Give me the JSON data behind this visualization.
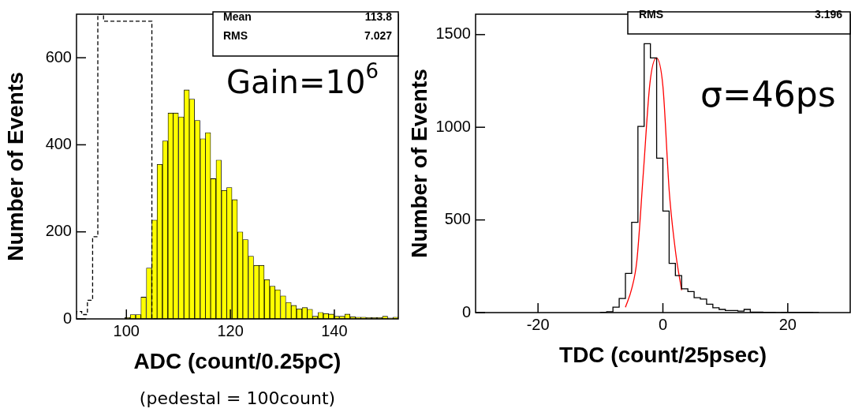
{
  "chart_data": [
    {
      "type": "histogram",
      "xlabel": "ADC (count/0.25pC)",
      "ylabel": "Number of Events",
      "xlim": [
        90.4,
        152.3
      ],
      "ylim": [
        0,
        700
      ],
      "xticks": [
        100,
        120,
        140
      ],
      "yticks": [
        0,
        200,
        400,
        600
      ],
      "grid": false,
      "legend": false,
      "annotations": [
        "Mean",
        "113.8",
        "RMS",
        "7.027",
        "Gain=10$^{6}$",
        "(pedestal = 100count)"
      ],
      "bins": [
        90.4,
        91.4,
        92.5,
        93.5,
        94.5,
        95.6,
        96.6,
        97.6,
        98.7,
        99.7,
        100.7,
        101.8,
        102.8,
        103.8,
        104.9,
        105.9,
        106.9,
        108.0,
        109.0,
        110.0,
        111.1,
        112.1,
        113.1,
        114.2,
        115.2,
        116.2,
        117.2,
        118.3,
        119.3,
        120.3,
        121.4,
        122.4,
        123.4,
        124.5,
        125.5,
        126.5,
        127.6,
        128.6,
        129.6,
        130.7,
        131.7,
        132.7,
        133.8,
        134.8,
        135.8,
        136.8,
        137.9,
        138.9,
        139.9,
        141.0,
        142.0,
        143.0,
        144.1,
        145.1,
        146.1,
        147.2,
        148.2,
        149.2,
        150.3,
        151.3,
        152.3
      ],
      "series": [
        {
          "type": "step",
          "color": "#000000",
          "line_style": "dashed",
          "x": [
            90.4,
            91.4,
            92.5,
            93.5,
            94.5,
            95.6,
            104.9,
            105.9
          ],
          "values": [
            10,
            17,
            10,
            43,
            189,
            700,
            684,
            0
          ]
        },
        {
          "color": "#ffff00",
          "values": [
            0,
            0,
            0,
            0,
            0,
            0,
            0,
            0,
            0,
            3,
            10,
            10,
            50,
            117,
            227,
            355,
            409,
            473,
            473,
            464,
            526,
            505,
            456,
            414,
            428,
            322,
            365,
            295,
            302,
            274,
            200,
            182,
            144,
            123,
            123,
            90,
            75,
            67,
            53,
            38,
            31,
            23,
            26,
            22,
            6,
            15,
            12,
            11,
            6,
            6,
            11,
            5,
            4,
            4,
            3,
            3,
            3,
            6,
            2,
            4
          ]
        }
      ]
    },
    {
      "type": "step",
      "xlabel": "TDC (count/25psec)",
      "ylabel": "Number of Events",
      "xlim": [
        -30,
        30
      ],
      "ylim": [
        0,
        1610
      ],
      "xticks": [
        -20,
        0,
        20
      ],
      "yticks": [
        0,
        500,
        1000,
        1500
      ],
      "grid": false,
      "legend": false,
      "annotations": [
        "RMS",
        "3.196",
        "σ=46ps"
      ],
      "series": [
        {
          "color": "#000000",
          "x": [
            -10,
            -9,
            -8,
            -7,
            -6,
            -5,
            -4,
            -3,
            -2,
            -1,
            0,
            1,
            2,
            3,
            4,
            5,
            6,
            7,
            8,
            9,
            10,
            11,
            12,
            13,
            14,
            15,
            16,
            17,
            18,
            19,
            20,
            21,
            22,
            23,
            24,
            25
          ],
          "values": [
            1,
            2,
            5,
            29,
            76,
            211,
            487,
            1005,
            1451,
            1374,
            833,
            548,
            266,
            200,
            128,
            113,
            80,
            73,
            45,
            26,
            17,
            11,
            11,
            8,
            17,
            3,
            3,
            1,
            1,
            0,
            1,
            1,
            1,
            1,
            1,
            0
          ]
        },
        {
          "type": "line",
          "color": "#ff0000",
          "x": [
            -6,
            -5,
            -4.17,
            -3.13,
            -2.08,
            -1.04,
            0,
            1.04,
            2.08,
            3
          ],
          "values": [
            29,
            128,
            280,
            755,
            1237,
            1374,
            1222,
            644,
            314,
            121
          ]
        }
      ]
    }
  ]
}
